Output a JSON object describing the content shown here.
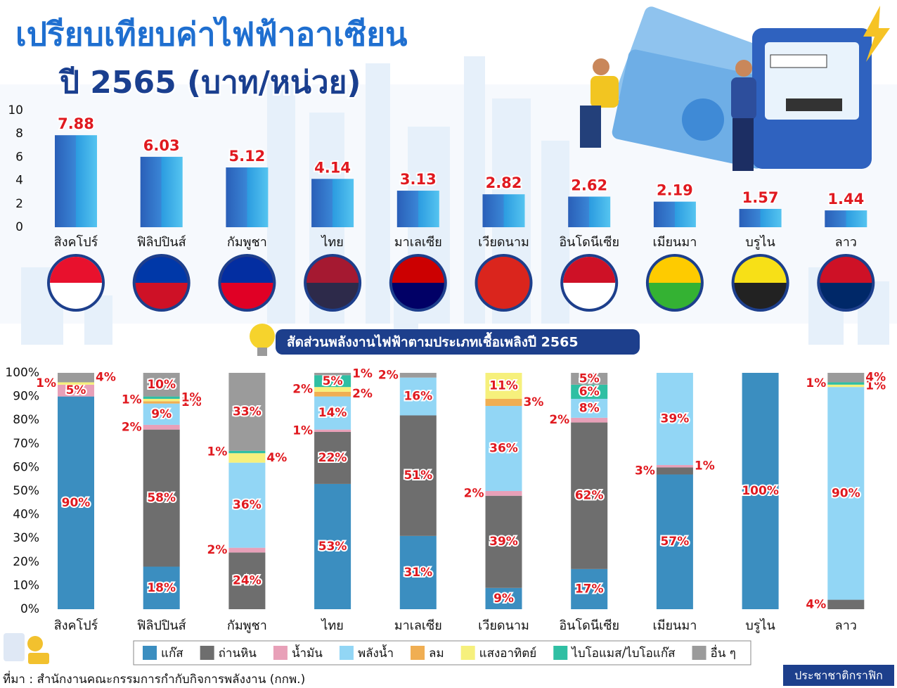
{
  "chart_data": [
    {
      "type": "bar",
      "title": "เปรียบเทียบค่าไฟฟ้าอาเซียน",
      "subtitle": "ปี 2565 (บาท/หน่วย)",
      "categories": [
        "สิงคโปร์",
        "ฟิลิปปินส์",
        "กัมพูชา",
        "ไทย",
        "มาเลเซีย",
        "เวียดนาม",
        "อินโดนีเซีย",
        "เมียนมา",
        "บรูไน",
        "ลาว"
      ],
      "values": [
        7.88,
        6.03,
        5.12,
        4.14,
        3.13,
        2.82,
        2.62,
        2.19,
        1.57,
        1.44
      ],
      "color": "#2e6cc2",
      "ylim": [
        0,
        10
      ],
      "yticks": [
        0,
        2,
        4,
        6,
        8,
        10
      ],
      "grid": false
    },
    {
      "type": "bar",
      "stacked": true,
      "title": "สัดส่วนพลังงานไฟฟ้าตามประเภทเชื้อเพลิงปี 2565",
      "categories": [
        "สิงคโปร์",
        "ฟิลิปปินส์",
        "กัมพูชา",
        "ไทย",
        "มาเลเซีย",
        "เวียดนาม",
        "อินโดนีเซีย",
        "เมียนมา",
        "บรูไน",
        "ลาว"
      ],
      "series": [
        {
          "name": "แก๊ส",
          "color": "#3b8ec0",
          "values": [
            90,
            18,
            null,
            53,
            31,
            9,
            17,
            57,
            100,
            null
          ],
          "value_labels": [
            "90%",
            "18%",
            null,
            "53%",
            "31%",
            "9%",
            "17%",
            "57%",
            "100%",
            null
          ]
        },
        {
          "name": "ถ่านหิน",
          "color": "#6e6e6e",
          "values": [
            null,
            58,
            24,
            22,
            51,
            39,
            62,
            3,
            null,
            4
          ],
          "value_labels": [
            null,
            "58%",
            "24%",
            "22%",
            "51%",
            "39%",
            "62%",
            "3%",
            null,
            "4%"
          ]
        },
        {
          "name": "น้ำมัน",
          "color": "#e8a0b8",
          "values": [
            5,
            2,
            2,
            1,
            null,
            2,
            2,
            1,
            null,
            null
          ],
          "value_labels": [
            "5%",
            "2%",
            "2%",
            "1%",
            null,
            "2%",
            "2%",
            "1%",
            null,
            null
          ]
        },
        {
          "name": "พลังน้ำ",
          "color": "#92d6f5",
          "values": [
            null,
            9,
            36,
            14,
            16,
            36,
            8,
            39,
            null,
            90
          ],
          "value_labels": [
            null,
            "9%",
            "36%",
            "14%",
            "16%",
            "36%",
            "8%",
            "39%",
            null,
            "90%"
          ]
        },
        {
          "name": "ลม",
          "color": "#f0ae52",
          "values": [
            null,
            1,
            null,
            2,
            null,
            3,
            null,
            null,
            null,
            null
          ],
          "value_labels": [
            null,
            "1%",
            null,
            "2%",
            null,
            "3%",
            null,
            null,
            null,
            null
          ]
        },
        {
          "name": "แสงอาทิตย์",
          "color": "#f6f07c",
          "values": [
            1,
            1,
            4,
            2,
            null,
            11,
            null,
            null,
            null,
            1
          ],
          "value_labels": [
            "1%",
            "1%",
            "4%",
            "2%",
            null,
            "11%",
            null,
            null,
            null,
            "1%"
          ]
        },
        {
          "name": "ไบโอแมส/ไบโอแก๊ส",
          "color": "#2fbfa3",
          "values": [
            null,
            1,
            1,
            5,
            null,
            null,
            6,
            null,
            null,
            1
          ],
          "value_labels": [
            null,
            "1%",
            "1%",
            "5%",
            null,
            null,
            "6%",
            null,
            null,
            "1%"
          ]
        },
        {
          "name": "อื่น ๆ",
          "color": "#9b9b9b",
          "values": [
            4,
            10,
            33,
            1,
            2,
            null,
            5,
            null,
            null,
            4
          ],
          "value_labels": [
            "4%",
            "10%",
            "33%",
            "1%",
            "2%",
            null,
            "5%",
            null,
            null,
            "4%"
          ]
        }
      ],
      "ylim": [
        0,
        100
      ],
      "yticks": [
        {
          "value": 0,
          "label": "0%"
        },
        {
          "value": 10,
          "label": "10%"
        },
        {
          "value": 20,
          "label": "20%"
        },
        {
          "value": 30,
          "label": "30%"
        },
        {
          "value": 40,
          "label": "40%"
        },
        {
          "value": 50,
          "label": "50%"
        },
        {
          "value": 60,
          "label": "60%"
        },
        {
          "value": 70,
          "label": "70%"
        },
        {
          "value": 80,
          "label": "80%"
        },
        {
          "value": 90,
          "label": "90%"
        },
        {
          "value": 100,
          "label": "100%"
        }
      ],
      "grid": false,
      "legend": "bottom"
    }
  ],
  "source": "ที่มา : สำนักงานคณะกรรมการกำกับกิจการพลังงาน (กกพ.)",
  "credit": "ประชาชาติกราฟิก"
}
